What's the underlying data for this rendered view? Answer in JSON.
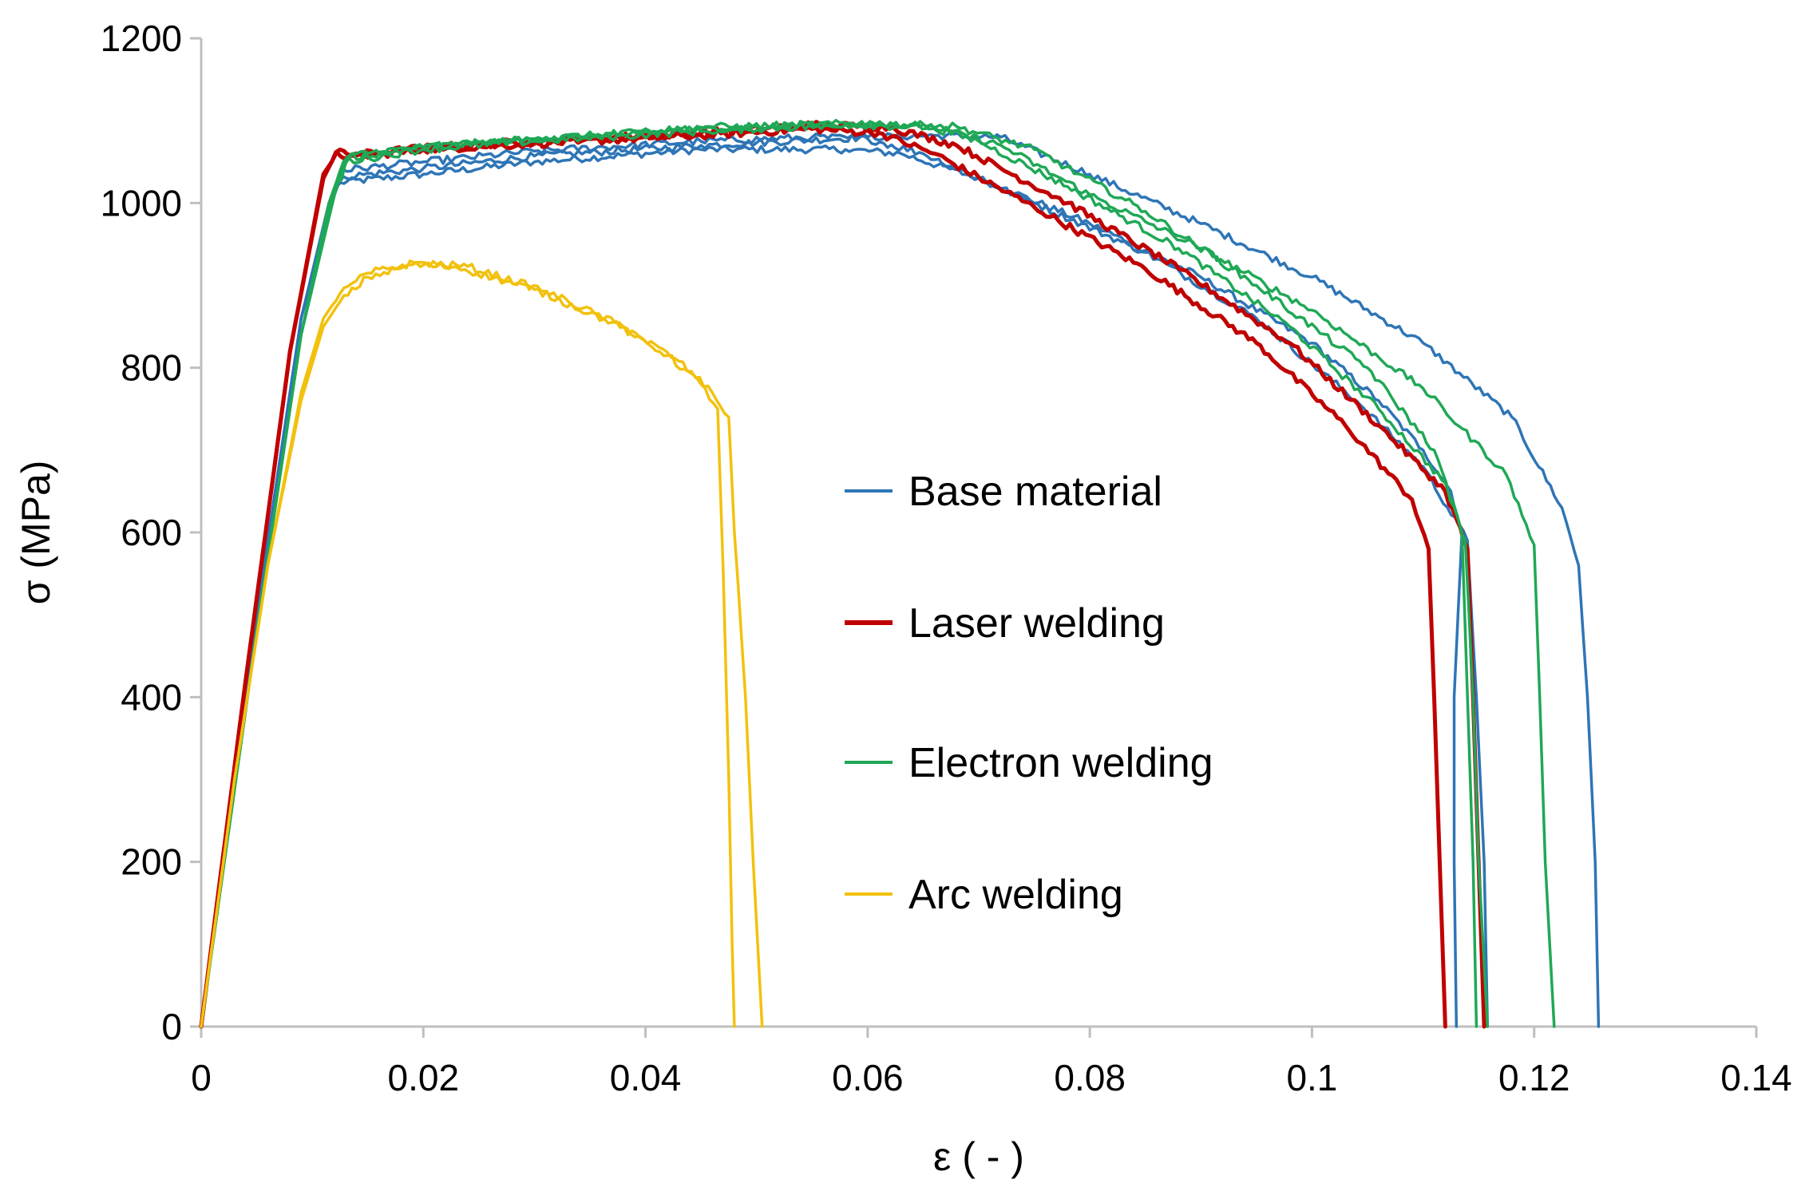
{
  "chart_data": {
    "type": "line",
    "title": "",
    "xlabel": "ε ( - )",
    "ylabel": "σ (MPa)",
    "xlim": [
      0,
      0.14
    ],
    "ylim": [
      0,
      1200
    ],
    "xticks": [
      0,
      0.02,
      0.04,
      0.06,
      0.08,
      0.1,
      0.12,
      0.14
    ],
    "xtick_labels": [
      "0",
      "0.02",
      "0.04",
      "0.06",
      "0.08",
      "0.1",
      "0.12",
      "0.14"
    ],
    "yticks": [
      0,
      200,
      400,
      600,
      800,
      1000,
      1200
    ],
    "ytick_labels": [
      "0",
      "200",
      "400",
      "600",
      "800",
      "1000",
      "1200"
    ],
    "grid": false,
    "legend_position": "center-right",
    "series": [
      {
        "name": "Base material",
        "color": "#2E75B6",
        "curves": [
          [
            [
              0,
              0
            ],
            [
              0.005,
              500
            ],
            [
              0.009,
              860
            ],
            [
              0.0115,
              1000
            ],
            [
              0.0125,
              1025
            ],
            [
              0.02,
              1035
            ],
            [
              0.03,
              1050
            ],
            [
              0.045,
              1065
            ],
            [
              0.058,
              1065
            ],
            [
              0.063,
              1060
            ],
            [
              0.07,
              1030
            ],
            [
              0.08,
              975
            ],
            [
              0.09,
              910
            ],
            [
              0.1,
              830
            ],
            [
              0.106,
              760
            ],
            [
              0.11,
              700
            ],
            [
              0.1125,
              650
            ],
            [
              0.1135,
              600
            ],
            [
              0.1128,
              400
            ],
            [
              0.1128,
              200
            ],
            [
              0.113,
              0
            ]
          ],
          [
            [
              0,
              0
            ],
            [
              0.005,
              500
            ],
            [
              0.009,
              860
            ],
            [
              0.012,
              1010
            ],
            [
              0.0128,
              1032
            ],
            [
              0.02,
              1042
            ],
            [
              0.03,
              1057
            ],
            [
              0.045,
              1070
            ],
            [
              0.06,
              1080
            ],
            [
              0.066,
              1082
            ],
            [
              0.072,
              1080
            ],
            [
              0.08,
              1035
            ],
            [
              0.09,
              975
            ],
            [
              0.1,
              910
            ],
            [
              0.11,
              830
            ],
            [
              0.118,
              740
            ],
            [
              0.1225,
              630
            ],
            [
              0.124,
              560
            ],
            [
              0.1248,
              400
            ],
            [
              0.1255,
              200
            ],
            [
              0.1258,
              0
            ]
          ],
          [
            [
              0,
              0
            ],
            [
              0.005,
              500
            ],
            [
              0.009,
              860
            ],
            [
              0.012,
              1012
            ],
            [
              0.0128,
              1040
            ],
            [
              0.02,
              1050
            ],
            [
              0.03,
              1063
            ],
            [
              0.045,
              1075
            ],
            [
              0.055,
              1080
            ],
            [
              0.06,
              1078
            ],
            [
              0.065,
              1060
            ],
            [
              0.075,
              1000
            ],
            [
              0.085,
              940
            ],
            [
              0.095,
              860
            ],
            [
              0.104,
              760
            ],
            [
              0.11,
              680
            ],
            [
              0.114,
              590
            ],
            [
              0.1148,
              400
            ],
            [
              0.1155,
              200
            ],
            [
              0.1158,
              0
            ]
          ]
        ]
      },
      {
        "name": "Laser welding",
        "color": "#C00000",
        "curves": [
          [
            [
              0,
              0
            ],
            [
              0.004,
              420
            ],
            [
              0.008,
              820
            ],
            [
              0.011,
              1030
            ],
            [
              0.0122,
              1062
            ],
            [
              0.0132,
              1055
            ],
            [
              0.02,
              1065
            ],
            [
              0.03,
              1072
            ],
            [
              0.045,
              1082
            ],
            [
              0.055,
              1090
            ],
            [
              0.061,
              1085
            ],
            [
              0.066,
              1060
            ],
            [
              0.075,
              995
            ],
            [
              0.085,
              920
            ],
            [
              0.095,
              830
            ],
            [
              0.103,
              730
            ],
            [
              0.109,
              640
            ],
            [
              0.1105,
              580
            ],
            [
              0.111,
              400
            ],
            [
              0.1115,
              200
            ],
            [
              0.112,
              0
            ]
          ],
          [
            [
              0,
              0
            ],
            [
              0.004,
              420
            ],
            [
              0.008,
              820
            ],
            [
              0.011,
              1035
            ],
            [
              0.0125,
              1065
            ],
            [
              0.0135,
              1058
            ],
            [
              0.02,
              1067
            ],
            [
              0.03,
              1075
            ],
            [
              0.045,
              1085
            ],
            [
              0.055,
              1095
            ],
            [
              0.062,
              1092
            ],
            [
              0.068,
              1070
            ],
            [
              0.078,
              1000
            ],
            [
              0.088,
              920
            ],
            [
              0.098,
              830
            ],
            [
              0.106,
              730
            ],
            [
              0.112,
              650
            ],
            [
              0.114,
              580
            ],
            [
              0.1145,
              400
            ],
            [
              0.115,
              200
            ],
            [
              0.1155,
              0
            ]
          ]
        ]
      },
      {
        "name": "Electron welding",
        "color": "#1FA856",
        "curves": [
          [
            [
              0,
              0
            ],
            [
              0.005,
              480
            ],
            [
              0.009,
              840
            ],
            [
              0.0115,
              1000
            ],
            [
              0.0128,
              1050
            ],
            [
              0.014,
              1060
            ],
            [
              0.02,
              1068
            ],
            [
              0.03,
              1078
            ],
            [
              0.045,
              1090
            ],
            [
              0.058,
              1095
            ],
            [
              0.065,
              1095
            ],
            [
              0.07,
              1075
            ],
            [
              0.078,
              1020
            ],
            [
              0.088,
              945
            ],
            [
              0.098,
              850
            ],
            [
              0.106,
              750
            ],
            [
              0.112,
              660
            ],
            [
              0.1138,
              590
            ],
            [
              0.1145,
              400
            ],
            [
              0.115,
              200
            ],
            [
              0.1158,
              0
            ]
          ],
          [
            [
              0,
              0
            ],
            [
              0.005,
              480
            ],
            [
              0.009,
              840
            ],
            [
              0.0118,
              1005
            ],
            [
              0.013,
              1050
            ],
            [
              0.02,
              1065
            ],
            [
              0.03,
              1075
            ],
            [
              0.045,
              1087
            ],
            [
              0.058,
              1095
            ],
            [
              0.066,
              1092
            ],
            [
              0.072,
              1070
            ],
            [
              0.08,
              1010
            ],
            [
              0.09,
              945
            ],
            [
              0.1,
              870
            ],
            [
              0.11,
              775
            ],
            [
              0.1175,
              670
            ],
            [
              0.12,
              585
            ],
            [
              0.1205,
              400
            ],
            [
              0.121,
              200
            ],
            [
              0.1218,
              0
            ]
          ],
          [
            [
              0,
              0
            ],
            [
              0.005,
              480
            ],
            [
              0.009,
              840
            ],
            [
              0.012,
              1010
            ],
            [
              0.0133,
              1055
            ],
            [
              0.02,
              1068
            ],
            [
              0.03,
              1078
            ],
            [
              0.045,
              1092
            ],
            [
              0.06,
              1097
            ],
            [
              0.068,
              1093
            ],
            [
              0.075,
              1065
            ],
            [
              0.085,
              990
            ],
            [
              0.095,
              900
            ],
            [
              0.105,
              800
            ],
            [
              0.111,
              700
            ],
            [
              0.1135,
              600
            ],
            [
              0.114,
              400
            ],
            [
              0.1145,
              200
            ],
            [
              0.1148,
              0
            ]
          ]
        ]
      },
      {
        "name": "Arc welding",
        "color": "#F2C10E",
        "curves": [
          [
            [
              0,
              0
            ],
            [
              0.003,
              300
            ],
            [
              0.006,
              560
            ],
            [
              0.009,
              760
            ],
            [
              0.011,
              850
            ],
            [
              0.0125,
              880
            ],
            [
              0.015,
              910
            ],
            [
              0.019,
              925
            ],
            [
              0.023,
              922
            ],
            [
              0.03,
              895
            ],
            [
              0.037,
              855
            ],
            [
              0.042,
              815
            ],
            [
              0.045,
              780
            ],
            [
              0.0465,
              750
            ],
            [
              0.047,
              550
            ],
            [
              0.0475,
              300
            ],
            [
              0.0478,
              100
            ],
            [
              0.048,
              0
            ]
          ],
          [
            [
              0,
              0
            ],
            [
              0.003,
              300
            ],
            [
              0.006,
              560
            ],
            [
              0.009,
              770
            ],
            [
              0.011,
              860
            ],
            [
              0.0125,
              890
            ],
            [
              0.015,
              915
            ],
            [
              0.0195,
              928
            ],
            [
              0.024,
              923
            ],
            [
              0.031,
              893
            ],
            [
              0.038,
              850
            ],
            [
              0.043,
              808
            ],
            [
              0.046,
              770
            ],
            [
              0.0475,
              740
            ],
            [
              0.048,
              600
            ],
            [
              0.049,
              400
            ],
            [
              0.0497,
              200
            ],
            [
              0.0505,
              0
            ]
          ]
        ]
      }
    ]
  }
}
